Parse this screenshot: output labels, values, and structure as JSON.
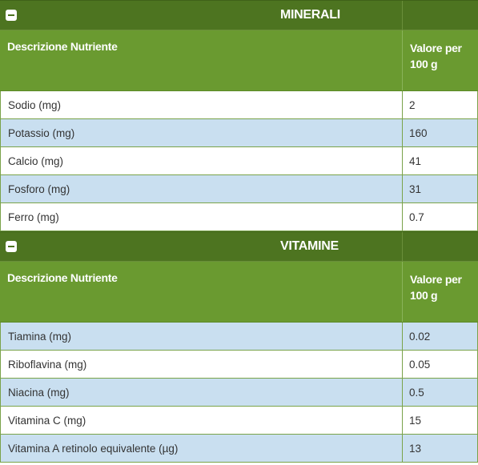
{
  "minerali": {
    "title": "MINERALI",
    "col_desc": "Descrizione Nutriente",
    "col_value": "Valore per 100 g",
    "rows": [
      {
        "name": "Sodio (mg)",
        "value": "2"
      },
      {
        "name": "Potassio (mg)",
        "value": "160"
      },
      {
        "name": "Calcio (mg)",
        "value": "41"
      },
      {
        "name": "Fosforo (mg)",
        "value": "31"
      },
      {
        "name": "Ferro (mg)",
        "value": "0.7"
      }
    ]
  },
  "vitamine": {
    "title": "VITAMINE",
    "col_desc": "Descrizione Nutriente",
    "col_value": "Valore per 100 g",
    "rows": [
      {
        "name": "Tiamina (mg)",
        "value": "0.02"
      },
      {
        "name": "Riboflavina (mg)",
        "value": "0.05"
      },
      {
        "name": "Niacina (mg)",
        "value": "0.5"
      },
      {
        "name": "Vitamina C (mg)",
        "value": "15"
      },
      {
        "name": "Vitamina A retinolo equivalente (µg)",
        "value": "13"
      }
    ]
  },
  "colors": {
    "section_header": "#4d7420",
    "column_header": "#6a9a30",
    "row_alt": "#c9dff0"
  },
  "icons": {
    "toggle": "minus-collapse-icon"
  }
}
